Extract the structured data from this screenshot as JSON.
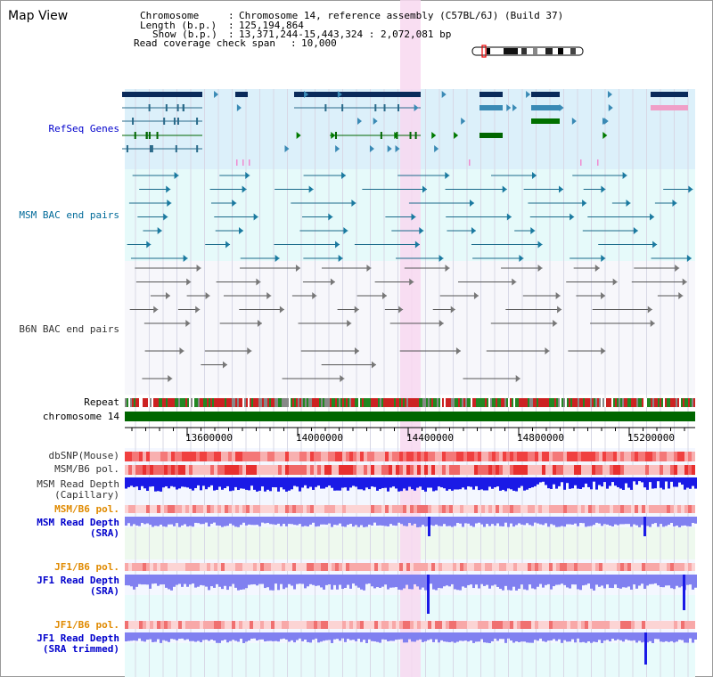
{
  "title": "Map View",
  "header": {
    "chromosome_label": "Chromosome",
    "chromosome_value": "Chromosome 14, reference assembly (C57BL/6J) (Build 37)",
    "length_label": "Length (b.p.)",
    "length_value": "125,194,864",
    "show_label": "Show (b.p.)",
    "show_value": "13,371,244-15,443,324 : 2,072,081 bp",
    "coverage_label": "Read coverage check span",
    "coverage_value": "10,000"
  },
  "tracks": {
    "refseq": "RefSeq Genes",
    "msm_bac": "MSM BAC end pairs",
    "b6n_bac": "B6N BAC end pairs",
    "repeat": "Repeat",
    "chromosome": "chromosome 14",
    "dbsnp": "dbSNP(Mouse)",
    "msm_b6_pol_1": "MSM/B6 pol.",
    "msm_depth_cap_1": "MSM Read Depth",
    "msm_depth_cap_2": "(Capillary)",
    "msm_b6_pol_2": "MSM/B6 pol.",
    "msm_depth_sra_1": "MSM Read Depth",
    "msm_depth_sra_2": "(SRA)",
    "jf1_b6_pol_1": "JF1/B6 pol.",
    "jf1_depth_sra_1": "JF1 Read Depth",
    "jf1_depth_sra_2": "(SRA)",
    "jf1_b6_pol_2": "JF1/B6 pol.",
    "jf1_depth_trim_1": "JF1 Read Depth",
    "jf1_depth_trim_2": "(SRA trimmed)"
  },
  "axis": {
    "ticks": [
      "13600000",
      "14000000",
      "14400000",
      "14800000",
      "15200000"
    ]
  },
  "colors": {
    "refseq_bg": "#dcf0fa",
    "bac_bg": "#e6fafa",
    "highlight": "#f8d8f0",
    "chromosome": "#006600",
    "depth_dark": "#1a1ae6",
    "depth_light": "#8080f0"
  }
}
